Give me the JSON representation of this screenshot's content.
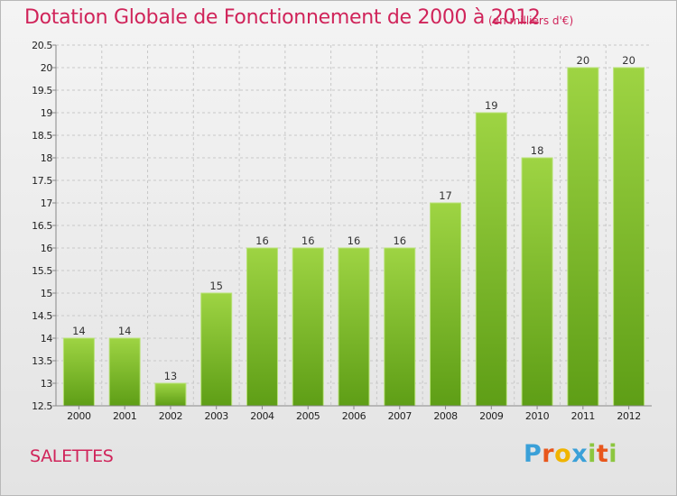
{
  "title": "Dotation Globale de Fonctionnement de 2000 à 2012",
  "subtitle": "(en milliers d'€)",
  "location": "SALETTES",
  "logo": {
    "text": "Proxiti",
    "letters": [
      "P",
      "r",
      "o",
      "x",
      "i",
      "t",
      "i"
    ],
    "colors": [
      "#3aa0d8",
      "#e8571c",
      "#f0b400",
      "#3aa0d8",
      "#8cc63f",
      "#e8571c",
      "#8cc63f"
    ]
  },
  "colors": {
    "bar_top": "#9ed443",
    "bar_bottom": "#5e9e16",
    "grid": "#c8c8c8",
    "axis": "#888888",
    "title": "#d0245a"
  },
  "chart_data": {
    "type": "bar",
    "categories": [
      "2000",
      "2001",
      "2002",
      "2003",
      "2004",
      "2005",
      "2006",
      "2007",
      "2008",
      "2009",
      "2010",
      "2011",
      "2012"
    ],
    "values": [
      14,
      14,
      13,
      15,
      16,
      16,
      16,
      16,
      17,
      19,
      18,
      20,
      20
    ],
    "value_labels": [
      "14",
      "14",
      "13",
      "15",
      "16",
      "16",
      "16",
      "16",
      "17",
      "19",
      "18",
      "20",
      "20"
    ],
    "y_ticks": [
      "12.5",
      "13",
      "13.5",
      "14",
      "14.5",
      "15",
      "15.5",
      "16",
      "16.5",
      "17",
      "17.5",
      "18",
      "18.5",
      "19",
      "19.5",
      "20",
      "20.5"
    ],
    "ylim": [
      12.5,
      20.5
    ],
    "grid": true,
    "xlabel": "",
    "ylabel": ""
  }
}
